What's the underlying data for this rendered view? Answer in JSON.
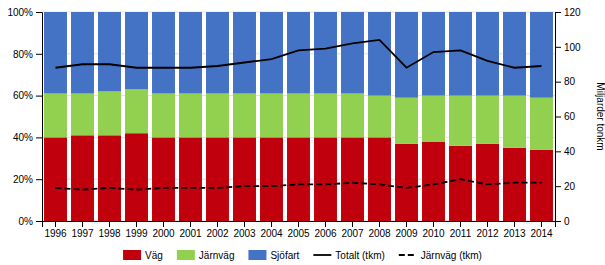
{
  "chart_data": {
    "type": "bar",
    "stacked": true,
    "categories": [
      "1996",
      "1997",
      "1998",
      "1999",
      "2000",
      "2001",
      "2002",
      "2003",
      "2004",
      "2005",
      "2006",
      "2007",
      "2008",
      "2009",
      "2010",
      "2011",
      "2012",
      "2013",
      "2014"
    ],
    "series": [
      {
        "name": "Väg",
        "color": "#C0000C",
        "type": "bar",
        "values": [
          0.4,
          0.41,
          0.41,
          0.42,
          0.4,
          0.4,
          0.4,
          0.4,
          0.4,
          0.4,
          0.4,
          0.4,
          0.4,
          0.37,
          0.38,
          0.36,
          0.37,
          0.35,
          0.34
        ]
      },
      {
        "name": "Järnväg",
        "color": "#92D050",
        "type": "bar",
        "values": [
          0.21,
          0.2,
          0.21,
          0.21,
          0.21,
          0.21,
          0.21,
          0.21,
          0.21,
          0.21,
          0.21,
          0.21,
          0.2,
          0.22,
          0.22,
          0.24,
          0.23,
          0.25,
          0.25
        ]
      },
      {
        "name": "Sjöfart",
        "color": "#4472C4",
        "type": "bar",
        "values": [
          0.39,
          0.39,
          0.38,
          0.37,
          0.39,
          0.39,
          0.39,
          0.39,
          0.39,
          0.39,
          0.39,
          0.39,
          0.4,
          0.41,
          0.4,
          0.4,
          0.4,
          0.4,
          0.41
        ]
      },
      {
        "name": "Totalt (tkm)",
        "color": "#000000",
        "type": "line",
        "axis": "y2",
        "line_style": "solid",
        "values": [
          88,
          90,
          90,
          88,
          88,
          88,
          89,
          91,
          93,
          98,
          99,
          102,
          104,
          88,
          97,
          98,
          92,
          88,
          89
        ]
      },
      {
        "name": "Järnväg (tkm)",
        "color": "#000000",
        "type": "line",
        "axis": "y2",
        "line_style": "dashed",
        "values": [
          19,
          18,
          19,
          18,
          19,
          19,
          19,
          20,
          20,
          21,
          21,
          22,
          21,
          19,
          21,
          24,
          21,
          22,
          22
        ]
      }
    ],
    "ylim": [
      0,
      1.0
    ],
    "yticks": [
      {
        "value": 0,
        "label": "0%"
      },
      {
        "value": 0.2,
        "label": "20%"
      },
      {
        "value": 0.4,
        "label": "40%"
      },
      {
        "value": 0.6,
        "label": "60%"
      },
      {
        "value": 0.8,
        "label": "80%"
      },
      {
        "value": 1.0,
        "label": "100%"
      }
    ],
    "y2lim": [
      0,
      120
    ],
    "y2ticks": [
      0,
      20,
      40,
      60,
      80,
      100,
      120
    ],
    "y2label": "Miljarder tonkm",
    "grid": true,
    "legend": "bottom"
  }
}
